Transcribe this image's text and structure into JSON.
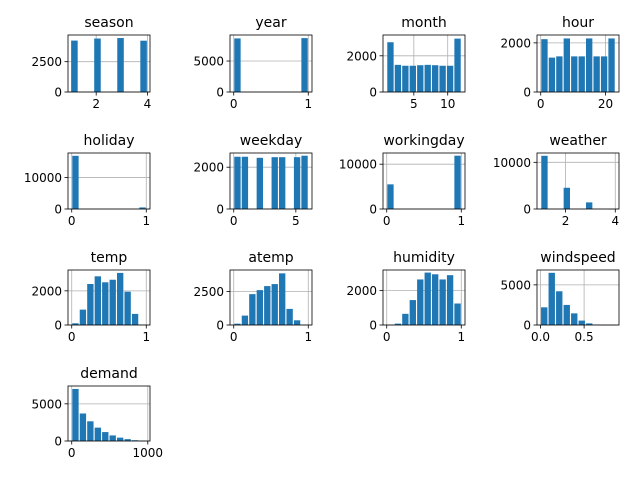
{
  "chart_data": [
    {
      "type": "bar",
      "title": "season",
      "x": [
        1.15,
        1.45,
        1.75,
        2.05,
        2.35,
        2.65,
        2.95,
        3.25,
        3.55,
        3.85
      ],
      "values": [
        4240,
        0,
        0,
        4410,
        0,
        0,
        4450,
        0,
        0,
        4230
      ],
      "xlim": [
        0.9,
        4.1
      ],
      "ylim": [
        0,
        4700
      ],
      "xticks": [
        {
          "v": 2,
          "label": "2"
        },
        {
          "v": 4,
          "label": "4"
        }
      ],
      "yticks": [
        {
          "v": 0,
          "label": "0"
        },
        {
          "v": 2500,
          "label": "2500"
        }
      ],
      "grid": true,
      "color": "#1f77b4"
    },
    {
      "type": "bar",
      "title": "year",
      "x": [
        0.05,
        0.15,
        0.25,
        0.35,
        0.45,
        0.55,
        0.65,
        0.75,
        0.85,
        0.95
      ],
      "values": [
        8650,
        0,
        0,
        0,
        0,
        0,
        0,
        0,
        0,
        8700
      ],
      "xlim": [
        -0.05,
        1.05
      ],
      "ylim": [
        0,
        9200
      ],
      "xticks": [
        {
          "v": 0,
          "label": "0"
        },
        {
          "v": 1,
          "label": "1"
        }
      ],
      "yticks": [
        {
          "v": 0,
          "label": "0"
        },
        {
          "v": 5000,
          "label": "5000"
        }
      ],
      "grid": true,
      "color": "#1f77b4"
    },
    {
      "type": "bar",
      "title": "month",
      "x": [
        1.55,
        2.65,
        3.75,
        4.85,
        5.95,
        7.05,
        8.15,
        9.25,
        10.35,
        11.45
      ],
      "values": [
        2750,
        1500,
        1450,
        1450,
        1480,
        1500,
        1480,
        1450,
        1450,
        2950
      ],
      "xlim": [
        0.45,
        12.55
      ],
      "ylim": [
        0,
        3150
      ],
      "xticks": [
        {
          "v": 5,
          "label": "5"
        },
        {
          "v": 10,
          "label": "10"
        }
      ],
      "yticks": [
        {
          "v": 0,
          "label": "0"
        },
        {
          "v": 2000,
          "label": "2000"
        }
      ],
      "grid": true,
      "color": "#1f77b4"
    },
    {
      "type": "bar",
      "title": "hour",
      "x": [
        1.15,
        3.45,
        5.75,
        8.05,
        10.35,
        12.65,
        14.95,
        17.25,
        19.55,
        21.85
      ],
      "values": [
        2150,
        1400,
        1450,
        2180,
        1450,
        1450,
        2180,
        1450,
        1450,
        2180
      ],
      "xlim": [
        -1.15,
        24.15
      ],
      "ylim": [
        0,
        2320
      ],
      "xticks": [
        {
          "v": 0,
          "label": "0"
        },
        {
          "v": 20,
          "label": "20"
        }
      ],
      "yticks": [
        {
          "v": 0,
          "label": "0"
        },
        {
          "v": 2000,
          "label": "2000"
        }
      ],
      "grid": true,
      "color": "#1f77b4"
    },
    {
      "type": "bar",
      "title": "holiday",
      "x": [
        0.05,
        0.15,
        0.25,
        0.35,
        0.45,
        0.55,
        0.65,
        0.75,
        0.85,
        0.95
      ],
      "values": [
        16900,
        0,
        0,
        0,
        0,
        0,
        0,
        0,
        0,
        500
      ],
      "xlim": [
        -0.05,
        1.05
      ],
      "ylim": [
        0,
        17800
      ],
      "xticks": [
        {
          "v": 0,
          "label": "0"
        },
        {
          "v": 1,
          "label": "1"
        }
      ],
      "yticks": [
        {
          "v": 0,
          "label": "0"
        },
        {
          "v": 10000,
          "label": "10000"
        }
      ],
      "grid": true,
      "color": "#1f77b4"
    },
    {
      "type": "bar",
      "title": "weekday",
      "x": [
        0.3,
        0.9,
        1.5,
        2.1,
        2.7,
        3.3,
        3.9,
        4.5,
        5.1,
        5.7
      ],
      "values": [
        2500,
        2500,
        0,
        2450,
        0,
        2480,
        2480,
        0,
        2480,
        2550
      ],
      "xlim": [
        -0.3,
        6.3
      ],
      "ylim": [
        0,
        2680
      ],
      "xticks": [
        {
          "v": 0,
          "label": "0"
        },
        {
          "v": 5,
          "label": "5"
        }
      ],
      "yticks": [
        {
          "v": 0,
          "label": "0"
        },
        {
          "v": 2000,
          "label": "2000"
        }
      ],
      "grid": true,
      "color": "#1f77b4"
    },
    {
      "type": "bar",
      "title": "workingday",
      "x": [
        0.05,
        0.15,
        0.25,
        0.35,
        0.45,
        0.55,
        0.65,
        0.75,
        0.85,
        0.95
      ],
      "values": [
        5500,
        0,
        0,
        0,
        0,
        0,
        0,
        0,
        0,
        11900
      ],
      "xlim": [
        -0.05,
        1.05
      ],
      "ylim": [
        0,
        12500
      ],
      "xticks": [
        {
          "v": 0,
          "label": "0"
        },
        {
          "v": 1,
          "label": "1"
        }
      ],
      "yticks": [
        {
          "v": 0,
          "label": "0"
        },
        {
          "v": 10000,
          "label": "10000"
        }
      ],
      "grid": true,
      "color": "#1f77b4"
    },
    {
      "type": "bar",
      "title": "weather",
      "x": [
        1.15,
        1.45,
        1.75,
        2.05,
        2.35,
        2.65,
        2.95,
        3.25,
        3.55,
        3.85
      ],
      "values": [
        11400,
        0,
        0,
        4550,
        0,
        0,
        1420,
        0,
        0,
        3
      ],
      "xlim": [
        0.85,
        4.15
      ],
      "ylim": [
        0,
        12000
      ],
      "xticks": [
        {
          "v": 2,
          "label": "2"
        },
        {
          "v": 4,
          "label": "4"
        }
      ],
      "yticks": [
        {
          "v": 0,
          "label": "0"
        },
        {
          "v": 10000,
          "label": "10000"
        }
      ],
      "grid": true,
      "color": "#1f77b4"
    },
    {
      "type": "bar",
      "title": "temp",
      "x": [
        0.05,
        0.15,
        0.25,
        0.35,
        0.45,
        0.55,
        0.65,
        0.75,
        0.85,
        0.95
      ],
      "values": [
        100,
        900,
        2400,
        2850,
        2500,
        2650,
        3050,
        1950,
        650,
        20
      ],
      "xlim": [
        -0.05,
        1.05
      ],
      "ylim": [
        0,
        3220
      ],
      "xticks": [
        {
          "v": 0,
          "label": "0"
        },
        {
          "v": 1,
          "label": "1"
        }
      ],
      "yticks": [
        {
          "v": 0,
          "label": "0"
        },
        {
          "v": 2000,
          "label": "2000"
        }
      ],
      "grid": true,
      "color": "#1f77b4"
    },
    {
      "type": "bar",
      "title": "atemp",
      "x": [
        0.05,
        0.15,
        0.25,
        0.35,
        0.45,
        0.55,
        0.65,
        0.75,
        0.85,
        0.95
      ],
      "values": [
        100,
        700,
        2300,
        2600,
        2900,
        3050,
        3850,
        1200,
        350,
        20
      ],
      "xlim": [
        -0.05,
        1.05
      ],
      "ylim": [
        0,
        4100
      ],
      "xticks": [
        {
          "v": 0,
          "label": "0"
        },
        {
          "v": 1,
          "label": "1"
        }
      ],
      "yticks": [
        {
          "v": 0,
          "label": "0"
        },
        {
          "v": 2500,
          "label": "2500"
        }
      ],
      "grid": true,
      "color": "#1f77b4"
    },
    {
      "type": "bar",
      "title": "humidity",
      "x": [
        0.05,
        0.15,
        0.25,
        0.35,
        0.45,
        0.55,
        0.65,
        0.75,
        0.85,
        0.95
      ],
      "values": [
        10,
        80,
        650,
        1450,
        2650,
        3050,
        2950,
        2650,
        2900,
        1250
      ],
      "xlim": [
        -0.05,
        1.05
      ],
      "ylim": [
        0,
        3200
      ],
      "xticks": [
        {
          "v": 0,
          "label": "0"
        },
        {
          "v": 1,
          "label": "1"
        }
      ],
      "yticks": [
        {
          "v": 0,
          "label": "0"
        },
        {
          "v": 2000,
          "label": "2000"
        }
      ],
      "grid": true,
      "color": "#1f77b4"
    },
    {
      "type": "bar",
      "title": "windspeed",
      "x": [
        0.043,
        0.129,
        0.215,
        0.301,
        0.387,
        0.473,
        0.559,
        0.645,
        0.731,
        0.817
      ],
      "values": [
        2200,
        6500,
        4200,
        2500,
        1450,
        550,
        200,
        50,
        15,
        5
      ],
      "xlim": [
        -0.04,
        0.9
      ],
      "ylim": [
        0,
        6850
      ],
      "xticks": [
        {
          "v": 0,
          "label": "0.0"
        },
        {
          "v": 0.5,
          "label": "0.5"
        }
      ],
      "yticks": [
        {
          "v": 0,
          "label": "0"
        },
        {
          "v": 5000,
          "label": "5000"
        }
      ],
      "grid": true,
      "color": "#1f77b4"
    },
    {
      "type": "bar",
      "title": "demand",
      "x": [
        49,
        147,
        245,
        343,
        441,
        539,
        637,
        735,
        833,
        931
      ],
      "values": [
        7000,
        3700,
        2650,
        1800,
        1200,
        750,
        450,
        250,
        100,
        30
      ],
      "xlim": [
        -49,
        1029
      ],
      "ylim": [
        0,
        7400
      ],
      "xticks": [
        {
          "v": 0,
          "label": "0"
        },
        {
          "v": 1000,
          "label": "1000"
        }
      ],
      "yticks": [
        {
          "v": 0,
          "label": "0"
        },
        {
          "v": 5000,
          "label": "5000"
        }
      ],
      "grid": true,
      "color": "#1f77b4"
    }
  ]
}
